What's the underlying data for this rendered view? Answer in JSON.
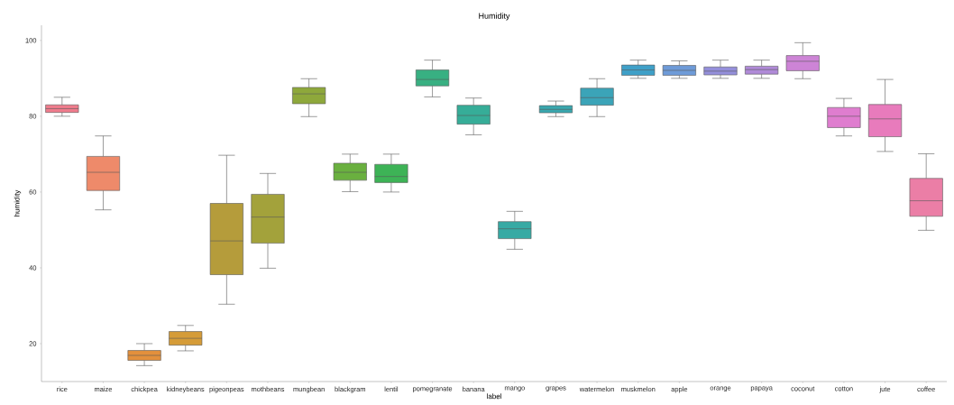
{
  "chart_data": {
    "type": "box",
    "title": "Humidity",
    "xlabel": "label",
    "ylabel": "humidity",
    "categories": [
      "rice",
      "maize",
      "chickpea",
      "kidneybeans",
      "pigeonpeas",
      "mothbeans",
      "mungbean",
      "blackgram",
      "lentil",
      "pomegranate",
      "banana",
      "mango",
      "grapes",
      "watermelon",
      "muskmelon",
      "apple",
      "orange",
      "papaya",
      "coconut",
      "cotton",
      "jute",
      "coffee"
    ],
    "colors": [
      "#ef7c8c",
      "#ee8a6a",
      "#e3903c",
      "#d59c38",
      "#b59c3b",
      "#a3a23b",
      "#8ea83b",
      "#6ab03f",
      "#3db356",
      "#38b082",
      "#36ad98",
      "#37aaa4",
      "#39a7ae",
      "#3ba4b8",
      "#3fa0c8",
      "#6e9bd8",
      "#948fdb",
      "#b08ad8",
      "#cd84d6",
      "#df7dcf",
      "#e87bbc",
      "#eb7ea6"
    ],
    "boxes": [
      {
        "low": 80,
        "q1": 81,
        "median": 82,
        "q3": 83,
        "high": 85
      },
      {
        "low": 55.3,
        "q1": 60.4,
        "median": 65.2,
        "q3": 69.4,
        "high": 74.8
      },
      {
        "low": 14.2,
        "q1": 15.6,
        "median": 16.9,
        "q3": 18.2,
        "high": 20
      },
      {
        "low": 18.1,
        "q1": 19.6,
        "median": 21.4,
        "q3": 23.2,
        "high": 24.8
      },
      {
        "low": 30.4,
        "q1": 38.2,
        "median": 47.1,
        "q3": 57,
        "high": 69.7
      },
      {
        "low": 39.9,
        "q1": 46.5,
        "median": 53.4,
        "q3": 59.4,
        "high": 64.9
      },
      {
        "low": 79.9,
        "q1": 83.3,
        "median": 85.9,
        "q3": 87.6,
        "high": 89.9
      },
      {
        "low": 60.1,
        "q1": 63.1,
        "median": 65.2,
        "q3": 67.6,
        "high": 70
      },
      {
        "low": 60,
        "q1": 62.5,
        "median": 64.1,
        "q3": 67.3,
        "high": 70
      },
      {
        "low": 85.1,
        "q1": 88,
        "median": 89.7,
        "q3": 92.2,
        "high": 94.8
      },
      {
        "low": 75.1,
        "q1": 77.9,
        "median": 80.2,
        "q3": 82.9,
        "high": 84.8
      },
      {
        "low": 44.9,
        "q1": 47.7,
        "median": 50.3,
        "q3": 52.2,
        "high": 54.9
      },
      {
        "low": 79.9,
        "q1": 80.9,
        "median": 81.8,
        "q3": 82.8,
        "high": 84
      },
      {
        "low": 79.9,
        "q1": 82.9,
        "median": 84.9,
        "q3": 87.4,
        "high": 89.9
      },
      {
        "low": 90,
        "q1": 90.8,
        "median": 92.2,
        "q3": 93.5,
        "high": 94.8
      },
      {
        "low": 90,
        "q1": 90.8,
        "median": 92.1,
        "q3": 93.4,
        "high": 94.6
      },
      {
        "low": 90,
        "q1": 90.9,
        "median": 91.9,
        "q3": 93,
        "high": 94.8
      },
      {
        "low": 90,
        "q1": 91.1,
        "median": 92.3,
        "q3": 93.2,
        "high": 94.8
      },
      {
        "low": 89.9,
        "q1": 92,
        "median": 94.5,
        "q3": 96,
        "high": 99.4
      },
      {
        "low": 74.8,
        "q1": 77,
        "median": 80,
        "q3": 82.3,
        "high": 84.7
      },
      {
        "low": 70.7,
        "q1": 74.6,
        "median": 79.3,
        "q3": 83.1,
        "high": 89.7
      },
      {
        "low": 49.9,
        "q1": 53.6,
        "median": 57.7,
        "q3": 63.6,
        "high": 70.1
      }
    ],
    "ylim": [
      10,
      104
    ],
    "yticks": [
      20,
      40,
      60,
      80,
      100
    ],
    "grid": false
  }
}
